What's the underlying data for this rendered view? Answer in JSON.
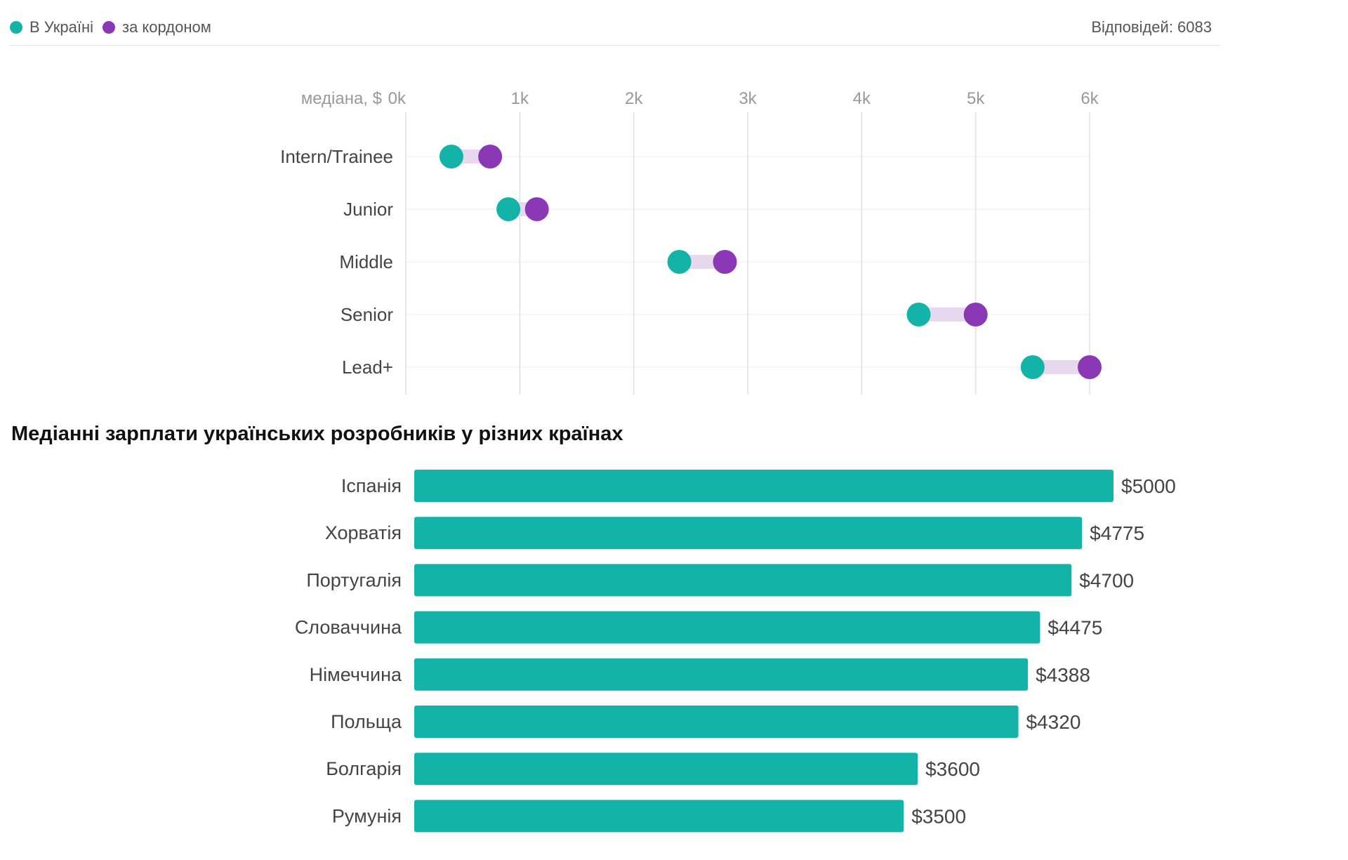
{
  "legend": {
    "items": [
      {
        "label": "В Україні",
        "color": "#13b3a8"
      },
      {
        "label": "за кордоном",
        "color": "#8a38b5"
      }
    ],
    "responses": "Відповідей: 6083"
  },
  "chart_data": [
    {
      "type": "scatter",
      "subtype": "dumbbell",
      "xlabel": "медіана, $",
      "x_ticks": [
        "0k",
        "1k",
        "2k",
        "3k",
        "4k",
        "5k",
        "6k"
      ],
      "xlim": [
        0,
        6000
      ],
      "grid": true,
      "categories": [
        "Intern/Trainee",
        "Junior",
        "Middle",
        "Senior",
        "Lead+"
      ],
      "series": [
        {
          "name": "В Україні",
          "color": "#13b3a8",
          "values": [
            400,
            900,
            2400,
            4500,
            5500
          ]
        },
        {
          "name": "за кордоном",
          "color": "#8a38b5",
          "values": [
            740,
            1150,
            2800,
            5000,
            6000
          ]
        }
      ],
      "connector_color": "#e8d8ee"
    },
    {
      "type": "bar",
      "orientation": "horizontal",
      "title": "Медіанні зарплати українських розробників у різних країнах",
      "categories": [
        "Іспанія",
        "Хорватія",
        "Португалія",
        "Словаччина",
        "Німеччина",
        "Польща",
        "Болгарія",
        "Румунія"
      ],
      "values": [
        5000,
        4775,
        4700,
        4475,
        4388,
        4320,
        3600,
        3500
      ],
      "value_labels": [
        "$5000",
        "$4775",
        "$4700",
        "$4475",
        "$4388",
        "$4320",
        "$3600",
        "$3500"
      ],
      "color": "#13b3a8",
      "xlim": [
        0,
        5000
      ],
      "grid": false
    }
  ]
}
